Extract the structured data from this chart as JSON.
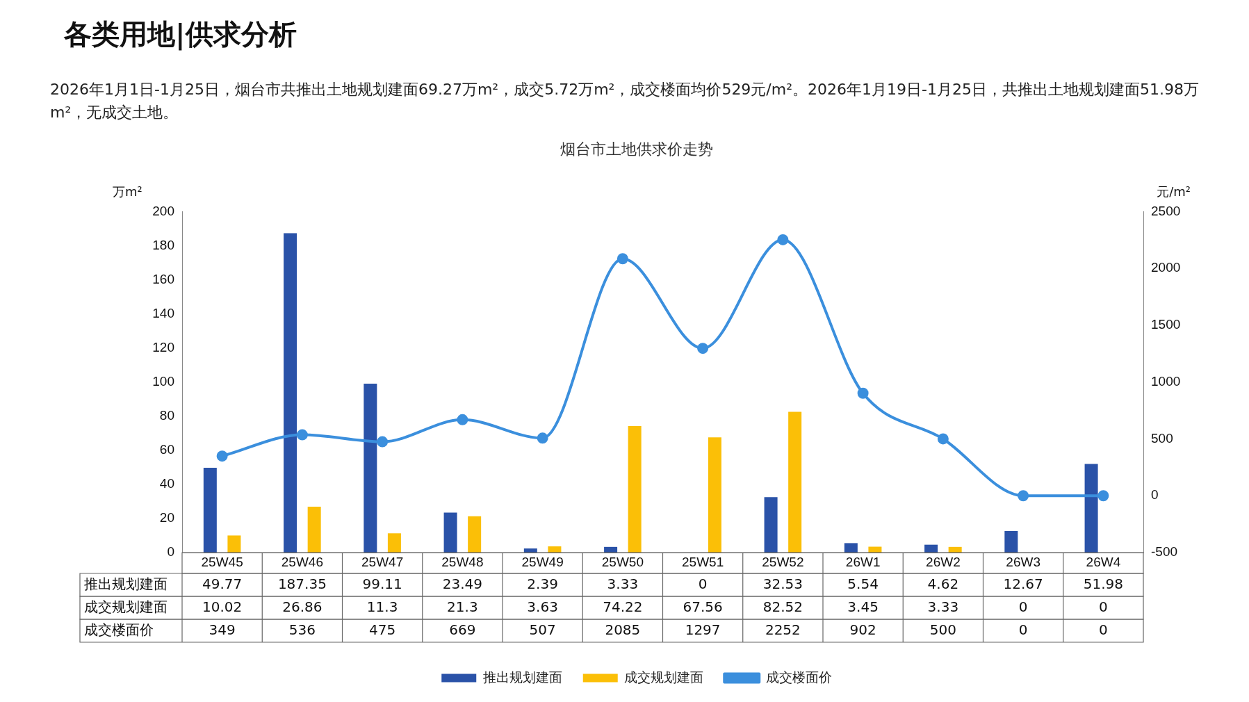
{
  "chart_data": {
    "type": "bar",
    "title": "烟台市土地供求价走势",
    "annotations": [
      "各类用地|供求分析",
      "2026年1月1日-1月25日，烟台市共推出土地规划建面69.27万m²，成交5.72万m²，成交楼面均价529元/m²。2026年1月19日-1月25日，共推出土地规划建面51.98万m²，无成交土地。"
    ],
    "ylabel": "万m²",
    "y2label": "元/m²",
    "categories": [
      "25W45",
      "25W46",
      "25W47",
      "25W48",
      "25W49",
      "25W50",
      "25W51",
      "25W52",
      "26W1",
      "26W2",
      "26W3",
      "26W4"
    ],
    "series": [
      {
        "name": "推出规划建面",
        "color": "#2a52a8",
        "values": [
          49.77,
          187.35,
          99.11,
          23.49,
          2.39,
          3.33,
          0,
          32.53,
          5.54,
          4.62,
          12.67,
          51.98
        ]
      },
      {
        "name": "成交规划建面",
        "color": "#fbbf07",
        "values": [
          10.02,
          26.86,
          11.3,
          21.3,
          3.63,
          74.22,
          67.56,
          82.52,
          3.45,
          3.33,
          0,
          0
        ]
      },
      {
        "name": "成交楼面价",
        "type": "line",
        "axis": "y2",
        "color": "#3b8fdd",
        "values": [
          349,
          536,
          475,
          669,
          507,
          2085,
          1297,
          2252,
          902,
          500,
          0,
          0
        ]
      }
    ],
    "ylim": [
      0,
      200
    ],
    "yticks": [
      0,
      20,
      40,
      60,
      80,
      100,
      120,
      140,
      160,
      180,
      200
    ],
    "y2lim": [
      -500,
      2500
    ],
    "y2ticks": [
      -500,
      0,
      500,
      1000,
      1500,
      2000,
      2500
    ],
    "data_labels": true,
    "grid": false,
    "legend": "bottom",
    "marker": "circle",
    "line_style": "solid"
  }
}
